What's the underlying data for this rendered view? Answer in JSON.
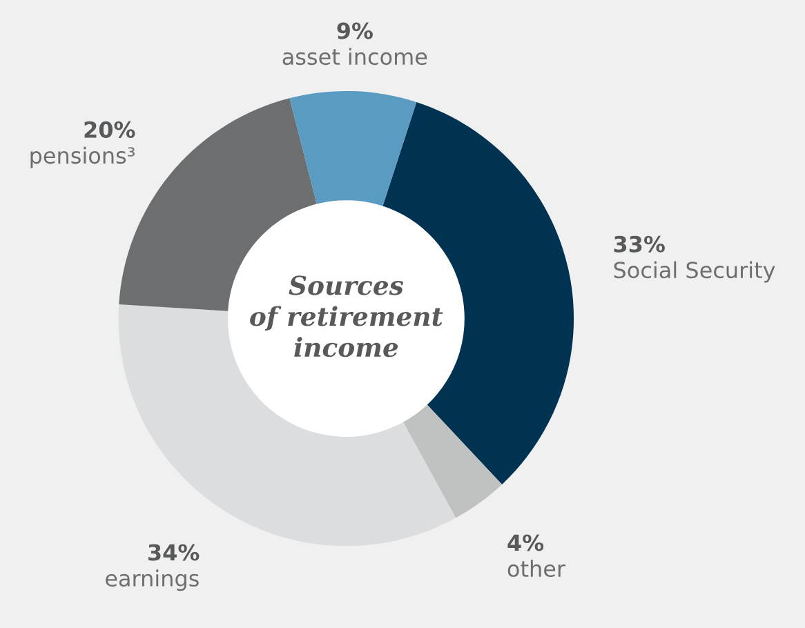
{
  "chart_data": {
    "type": "donut",
    "title": "Sources\nof retirement\nincome",
    "categories": [
      "Social Security",
      "other",
      "earnings",
      "pensions³",
      "asset income"
    ],
    "values": [
      33,
      4,
      34,
      20,
      9
    ],
    "value_labels": [
      "33%",
      "4%",
      "34%",
      "20%",
      "9%"
    ],
    "colors": [
      "#003352",
      "#c0c1c1",
      "#dcdddf",
      "#6d6e70",
      "#5a9bc1"
    ],
    "legend": false
  }
}
